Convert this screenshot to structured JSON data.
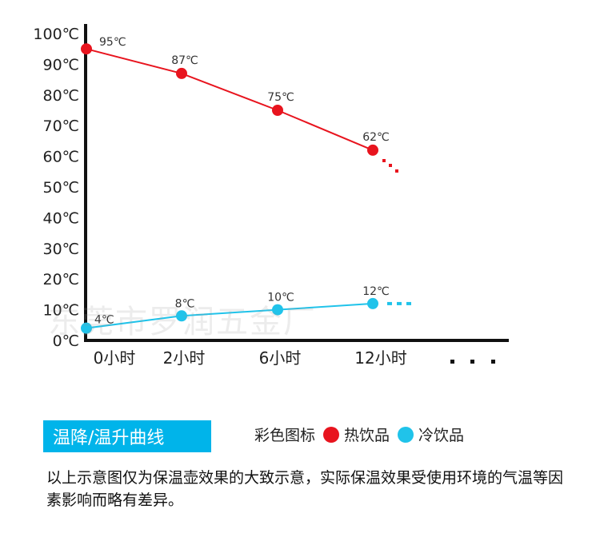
{
  "chart_data": {
    "type": "line",
    "categories": [
      "0小时",
      "2小时",
      "6小时",
      "12小时"
    ],
    "extra_x_tick": "- - -",
    "y_ticks": [
      "0℃",
      "10℃",
      "20℃",
      "30℃",
      "40℃",
      "50℃",
      "60℃",
      "70℃",
      "80℃",
      "90℃",
      "100℃"
    ],
    "ylim": [
      0,
      100
    ],
    "series": [
      {
        "name": "热饮品",
        "color": "#e8141e",
        "values": [
          95,
          87,
          75,
          62
        ],
        "labels": [
          "95℃",
          "87℃",
          "75℃",
          "62℃"
        ]
      },
      {
        "name": "冷饮品",
        "color": "#20c3ea",
        "values": [
          4,
          8,
          10,
          12
        ],
        "labels": [
          "4℃",
          "8℃",
          "10℃",
          "12℃"
        ]
      }
    ],
    "title": "温降/温升曲线",
    "legend_title": "彩色图标",
    "legend_position": "bottom"
  },
  "watermark": "东莞市罗润五金厂",
  "note": "以上示意图仅为保温壶效果的大致示意，实际保温效果受使用环境的气温等因素影响而略有差异。"
}
